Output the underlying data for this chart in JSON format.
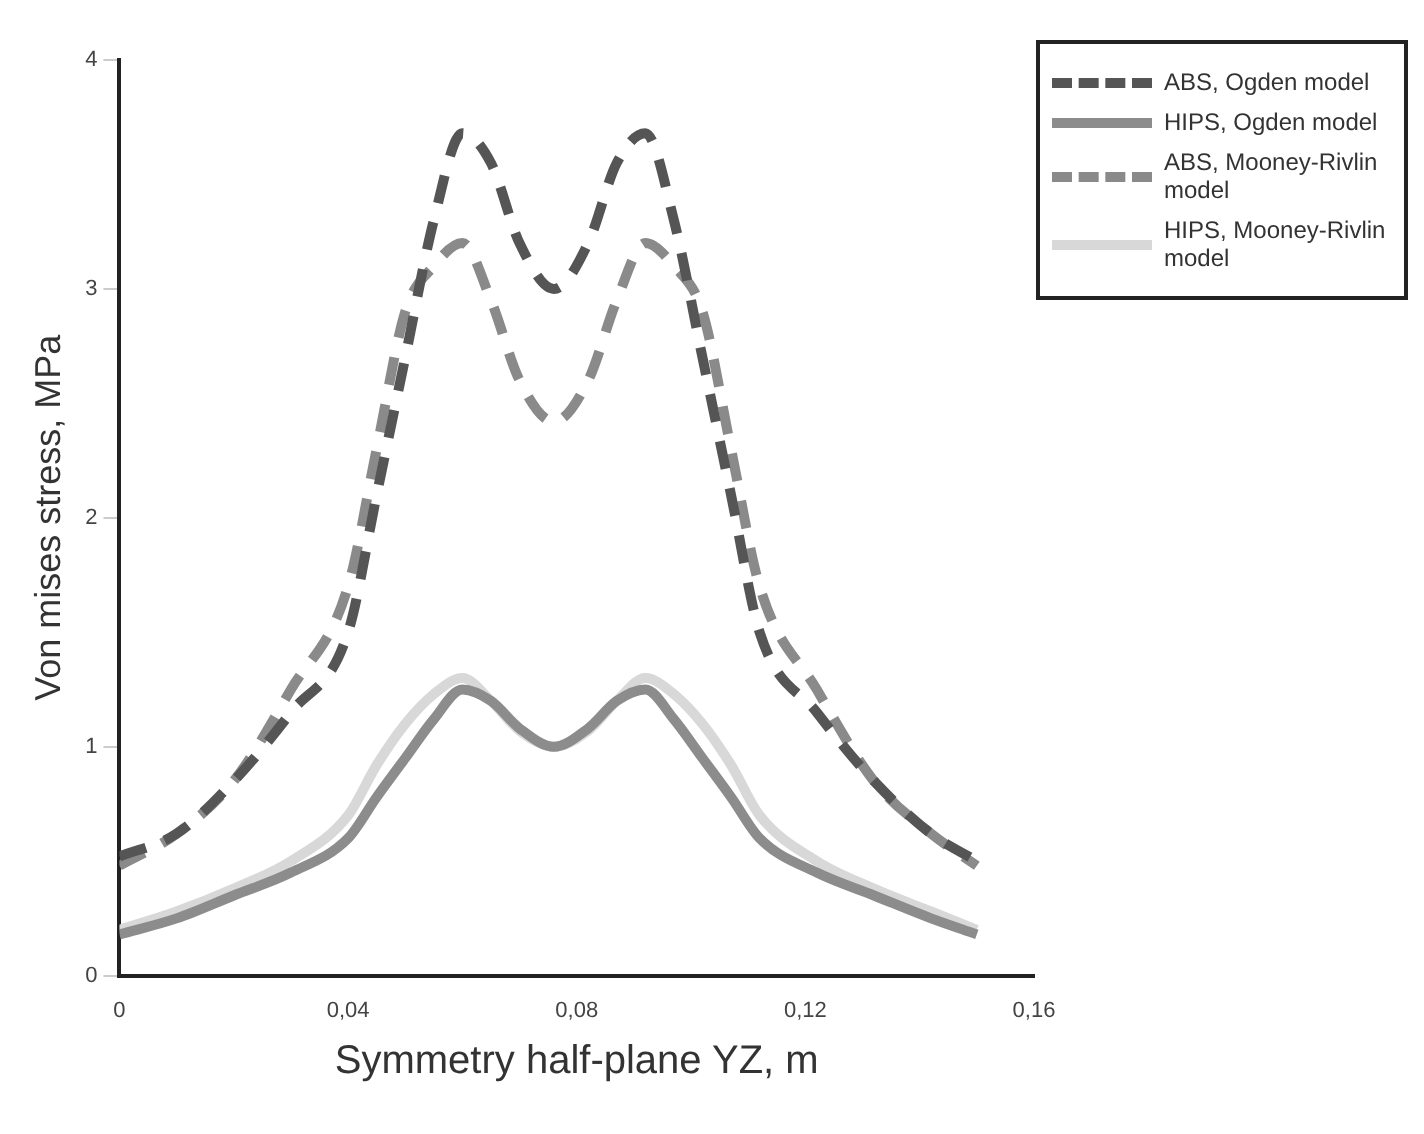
{
  "chart_data": {
    "type": "line",
    "xlabel": "Symmetry half-plane YZ, m",
    "ylabel": "Von mises stress, MPa",
    "x": [
      0,
      0.01,
      0.02,
      0.03,
      0.04,
      0.045,
      0.05,
      0.055,
      0.06,
      0.065,
      0.07,
      0.076,
      0.082,
      0.087,
      0.092,
      0.097,
      0.102,
      0.107,
      0.112,
      0.122,
      0.132,
      0.142,
      0.15
    ],
    "series": [
      {
        "name": "ABS, Ogden model",
        "color": "#555555",
        "line_style": "dashed",
        "values": [
          0.52,
          0.62,
          0.85,
          1.15,
          1.5,
          2.1,
          2.7,
          3.3,
          3.68,
          3.55,
          3.2,
          3.0,
          3.2,
          3.55,
          3.68,
          3.3,
          2.7,
          2.1,
          1.5,
          1.15,
          0.85,
          0.62,
          0.5
        ]
      },
      {
        "name": "HIPS, Ogden model",
        "color": "#8c8c8c",
        "line_style": "solid",
        "values": [
          0.18,
          0.25,
          0.35,
          0.45,
          0.6,
          0.78,
          0.95,
          1.12,
          1.25,
          1.2,
          1.08,
          1.0,
          1.08,
          1.2,
          1.25,
          1.12,
          0.95,
          0.78,
          0.6,
          0.45,
          0.35,
          0.25,
          0.18
        ]
      },
      {
        "name": "ABS, Mooney-Rivlin model",
        "color": "#8a8a8a",
        "line_style": "dashed",
        "values": [
          0.48,
          0.62,
          0.85,
          1.25,
          1.7,
          2.3,
          2.9,
          3.1,
          3.2,
          2.95,
          2.6,
          2.42,
          2.6,
          2.95,
          3.2,
          3.1,
          2.9,
          2.3,
          1.7,
          1.25,
          0.85,
          0.62,
          0.48
        ]
      },
      {
        "name": "HIPS, Mooney-Rivlin model",
        "color": "#d8d8d8",
        "line_style": "solid",
        "values": [
          0.2,
          0.28,
          0.38,
          0.5,
          0.7,
          0.92,
          1.1,
          1.23,
          1.3,
          1.2,
          1.07,
          1.0,
          1.07,
          1.2,
          1.3,
          1.23,
          1.1,
          0.92,
          0.7,
          0.5,
          0.38,
          0.28,
          0.2
        ]
      }
    ],
    "xlim": [
      0,
      0.16
    ],
    "xticks": [
      0,
      {
        "value": 0.04,
        "label": "0,04"
      },
      {
        "value": 0.08,
        "label": "0,08"
      },
      {
        "value": 0.12,
        "label": "0,12"
      },
      {
        "value": 0.16,
        "label": "0,16"
      }
    ],
    "ylim": [
      0,
      4
    ],
    "yticks": [
      0,
      1,
      2,
      3,
      4
    ],
    "grid": false,
    "legend": "right",
    "marker": "none"
  }
}
